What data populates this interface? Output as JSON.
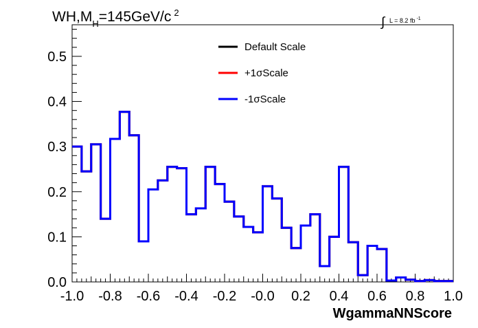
{
  "chart_data": {
    "type": "line",
    "title": {
      "main": "WH,M",
      "subscript": "H",
      "rest": "=145GeV/c",
      "superscript": "2"
    },
    "luminosity": {
      "integral_sign": "∫",
      "text": "L = 8.2 fb",
      "superscript": "-1"
    },
    "xlabel": "WgammaNNScore",
    "ylabel": "",
    "xlim": [
      -1.0,
      1.0
    ],
    "ylim": [
      0.0,
      0.57
    ],
    "x_ticks": [
      "-1.0",
      "-0.8",
      "-0.6",
      "-0.4",
      "-0.2",
      "-0.0",
      "0.2",
      "0.4",
      "0.6",
      "0.8",
      "1.0"
    ],
    "y_ticks": [
      "0.0",
      "0.1",
      "0.2",
      "0.3",
      "0.4",
      "0.5"
    ],
    "legend_position": "top-center",
    "bin_edges": [
      -1.0,
      -0.95,
      -0.9,
      -0.85,
      -0.8,
      -0.75,
      -0.7,
      -0.65,
      -0.6,
      -0.55,
      -0.5,
      -0.45,
      -0.4,
      -0.35,
      -0.3,
      -0.25,
      -0.2,
      -0.15,
      -0.1,
      -0.05,
      0.0,
      0.05,
      0.1,
      0.15,
      0.2,
      0.25,
      0.3,
      0.35,
      0.4,
      0.45,
      0.5,
      0.55,
      0.6,
      0.65,
      0.7,
      0.75,
      0.8,
      0.85,
      0.9,
      0.95,
      1.0
    ],
    "series": [
      {
        "name": "Default Scale",
        "color": "#000000",
        "values": [
          0.3,
          0.245,
          0.305,
          0.14,
          0.317,
          0.377,
          0.325,
          0.09,
          0.205,
          0.225,
          0.255,
          0.252,
          0.15,
          0.163,
          0.255,
          0.217,
          0.178,
          0.145,
          0.122,
          0.11,
          0.212,
          0.185,
          0.12,
          0.075,
          0.125,
          0.15,
          0.035,
          0.1,
          0.255,
          0.088,
          0.015,
          0.08,
          0.073,
          0.003,
          0.01,
          0.005,
          0.002,
          0.004,
          0.002,
          0.002
        ]
      },
      {
        "name": "+1σScale",
        "color": "#ff0000",
        "values": [
          0.3,
          0.245,
          0.305,
          0.14,
          0.317,
          0.377,
          0.325,
          0.09,
          0.205,
          0.225,
          0.255,
          0.252,
          0.15,
          0.163,
          0.255,
          0.217,
          0.178,
          0.145,
          0.122,
          0.11,
          0.212,
          0.185,
          0.12,
          0.075,
          0.125,
          0.15,
          0.035,
          0.1,
          0.255,
          0.088,
          0.015,
          0.08,
          0.073,
          0.003,
          0.01,
          0.005,
          0.002,
          0.004,
          0.002,
          0.002
        ]
      },
      {
        "name": "-1σScale",
        "color": "#0000ff",
        "values": [
          0.3,
          0.245,
          0.305,
          0.14,
          0.317,
          0.377,
          0.325,
          0.09,
          0.205,
          0.225,
          0.255,
          0.252,
          0.15,
          0.163,
          0.255,
          0.217,
          0.178,
          0.145,
          0.122,
          0.11,
          0.212,
          0.185,
          0.12,
          0.075,
          0.125,
          0.15,
          0.035,
          0.1,
          0.255,
          0.088,
          0.015,
          0.08,
          0.073,
          0.003,
          0.01,
          0.005,
          0.002,
          0.004,
          0.002,
          0.002
        ]
      }
    ]
  }
}
